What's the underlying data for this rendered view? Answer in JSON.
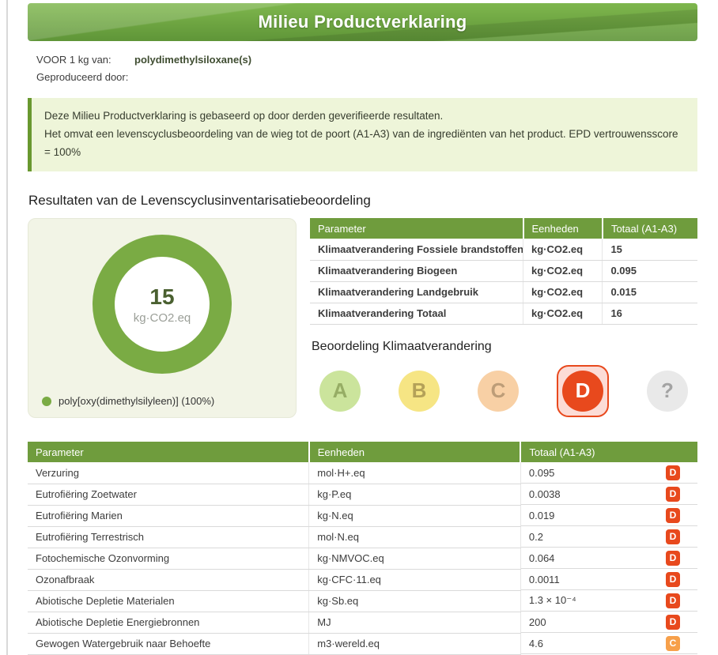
{
  "page": {
    "title": "Milieu Productverklaring"
  },
  "meta": {
    "for_label": "VOOR 1 kg van:",
    "for_value": "polydimethylsiloxane(s)",
    "producer_label": "Geproduceerd door:",
    "producer_value": ""
  },
  "notice": {
    "line1": "Deze Milieu Productverklaring is gebaseerd op door derden geverifieerde resultaten.",
    "line2": "Het omvat een levenscyclusbeoordeling van de wieg tot de poort (A1-A3) van de ingrediënten van het product. EPD vertrouwensscore = 100%"
  },
  "section_title": "Resultaten van de Levenscyclusinventarisatiebeoordeling",
  "chart_data": {
    "type": "pie",
    "labels": [
      "poly[oxy(dimethylsilyleen)]"
    ],
    "values": [
      100
    ],
    "center_value": "15",
    "center_unit": "kg·CO2.eq",
    "legend_entry": "poly[oxy(dimethylsilyleen)] (100%)",
    "ring_color": "#7aab44"
  },
  "climate_table": {
    "headers": [
      "Parameter",
      "Eenheden",
      "Totaal (A1-A3)"
    ],
    "rows": [
      {
        "param": "Klimaatverandering Fossiele brandstoffen",
        "unit": "kg·CO2.eq",
        "value": "15"
      },
      {
        "param": "Klimaatverandering Biogeen",
        "unit": "kg·CO2.eq",
        "value": "0.095"
      },
      {
        "param": "Klimaatverandering Landgebruik",
        "unit": "kg·CO2.eq",
        "value": "0.015"
      },
      {
        "param": "Klimaatverandering Totaal",
        "unit": "kg·CO2.eq",
        "value": "16"
      }
    ]
  },
  "assessment": {
    "title": "Beoordeling Klimaatverandering",
    "selected": "D",
    "options": [
      {
        "label": "A",
        "bg": "#cbe49c",
        "fg": "#96ad65"
      },
      {
        "label": "B",
        "bg": "#f6e584",
        "fg": "#b4a158"
      },
      {
        "label": "C",
        "bg": "#f8d0a5",
        "fg": "#bd9d78"
      },
      {
        "label": "D",
        "bg": "#e8491d",
        "fg": "#ffffff"
      },
      {
        "label": "?",
        "bg": "#e9e9e9",
        "fg": "#a3a3a3"
      }
    ],
    "selected_wrap_bg": "#fcdcd6",
    "selected_wrap_border": "#e8491d"
  },
  "impact_table": {
    "headers": [
      "Parameter",
      "Eenheden",
      "Totaal (A1-A3)"
    ],
    "rows": [
      {
        "param": "Verzuring",
        "unit": "mol·H+.eq",
        "value": "0.095",
        "grade": "D"
      },
      {
        "param": "Eutrofiëring Zoetwater",
        "unit": "kg·P.eq",
        "value": "0.0038",
        "grade": "D"
      },
      {
        "param": "Eutrofiëring Marien",
        "unit": "kg·N.eq",
        "value": "0.019",
        "grade": "D"
      },
      {
        "param": "Eutrofiëring Terrestrisch",
        "unit": "mol·N.eq",
        "value": "0.2",
        "grade": "D"
      },
      {
        "param": "Fotochemische Ozonvorming",
        "unit": "kg·NMVOC.eq",
        "value": "0.064",
        "grade": "D"
      },
      {
        "param": "Ozonafbraak",
        "unit": "kg·CFC·11.eq",
        "value": "0.0011",
        "grade": "D"
      },
      {
        "param": "Abiotische Depletie Materialen",
        "unit": "kg·Sb.eq",
        "value": "1.3 × 10⁻⁴",
        "grade": "D"
      },
      {
        "param": "Abiotische Depletie Energiebronnen",
        "unit": "MJ",
        "value": "200",
        "grade": "D"
      },
      {
        "param": "Gewogen Watergebruik naar Behoefte",
        "unit": "m3·wereld.eq",
        "value": "4.6",
        "grade": "C"
      }
    ]
  },
  "colors": {
    "header_green": "#6f9c3d",
    "banner_green": "#6da441",
    "notice_bg": "#eef5d9",
    "notice_border": "#69982f",
    "donut_green": "#7aab44",
    "grades": {
      "D": "#e8491d",
      "C": "#f7a04a"
    }
  }
}
